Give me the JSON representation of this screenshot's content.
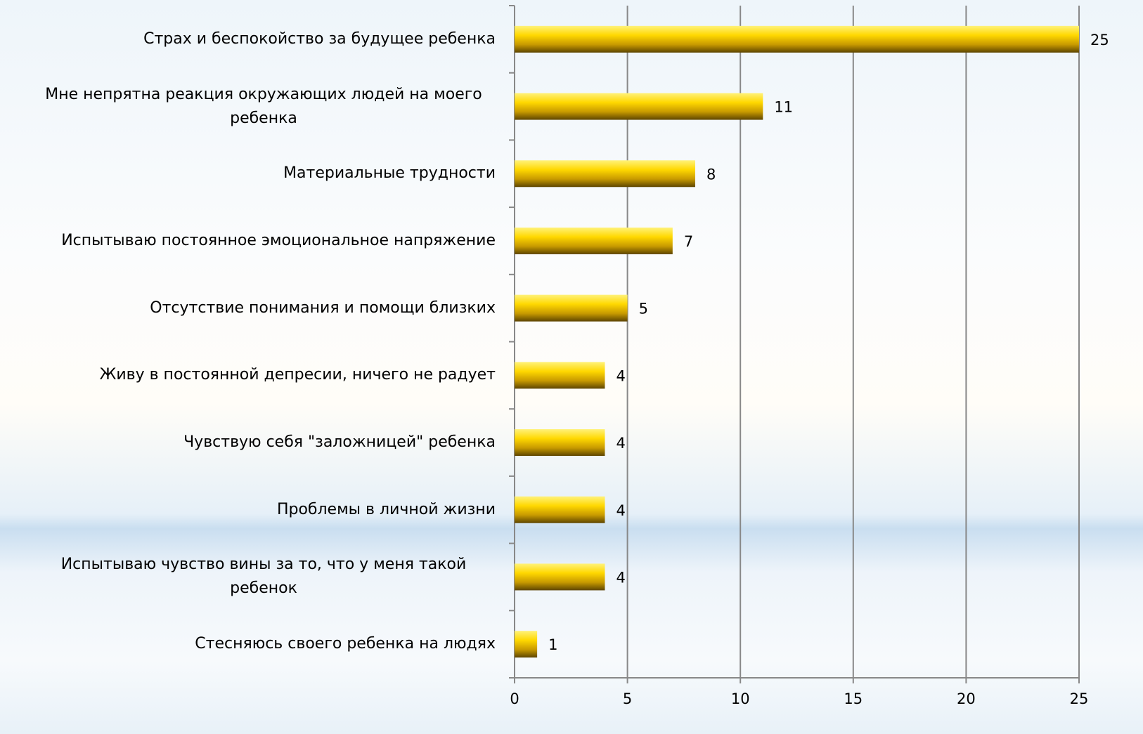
{
  "chart_data": {
    "type": "barh",
    "categories": [
      "Страх и беспокойство за будущее ребенка",
      "Мне непрятна реакция окружающих людей на моего ребенка",
      "Материальные трудности",
      "Испытываю постоянное эмоциональное напряжение",
      "Отсутствие понимания и помощи близких",
      "Живу в постоянной депресии, ничего не радует",
      "Чувствую себя \"заложницей\" ребенка",
      "Проблемы в личной жизни",
      "Испытываю чувство вины за то, что у меня такой ребенок",
      "Стесняюсь своего ребенка на людях"
    ],
    "values": [
      25,
      11,
      8,
      7,
      5,
      4,
      4,
      4,
      4,
      1
    ],
    "color": "#ffd800",
    "xlim": [
      0,
      25
    ],
    "xticks": [
      0,
      5,
      10,
      15,
      20,
      25
    ],
    "grid": true
  }
}
